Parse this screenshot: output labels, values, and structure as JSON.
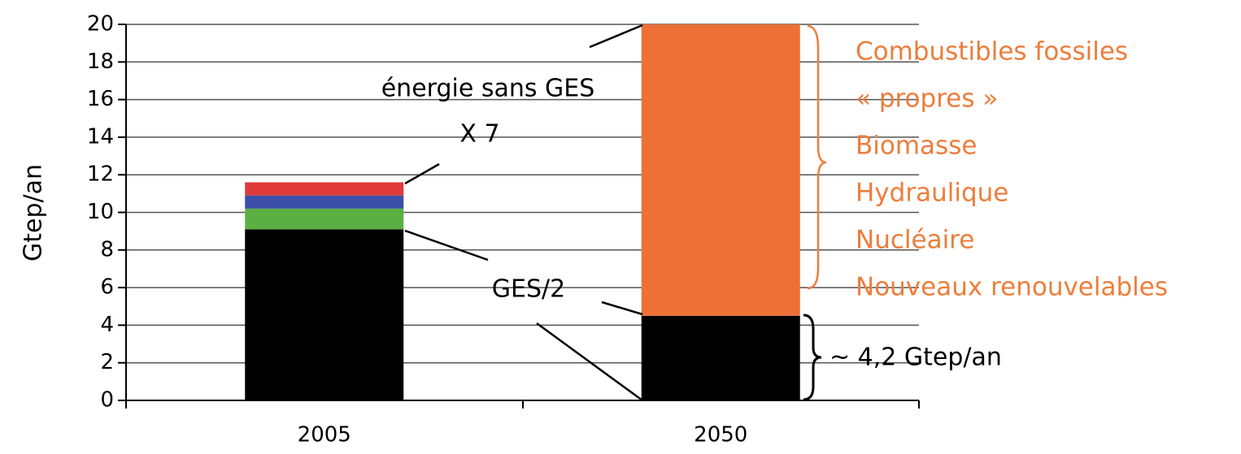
{
  "chart_data": {
    "type": "stacked_bar",
    "y_label": "Gtep/an",
    "categories": [
      "2005",
      "2050"
    ],
    "series": [
      {
        "color": "#000000",
        "values": [
          9.1,
          4.5
        ]
      },
      {
        "color": "#5bb043",
        "values": [
          1.1,
          null
        ]
      },
      {
        "color": "#3b4fa8",
        "values": [
          0.7,
          null
        ]
      },
      {
        "color": "#e03a3a",
        "values": [
          0.7,
          null
        ]
      },
      {
        "color": "#ed7036",
        "values": [
          null,
          15.5
        ]
      }
    ],
    "ylim": [
      0,
      20
    ],
    "yticks": [
      0,
      2,
      4,
      6,
      8,
      10,
      12,
      14,
      16,
      18,
      20
    ],
    "grid": true,
    "annotations": [
      "énergie sans GES",
      "X 7",
      "GES/2",
      "~ 4,2 Gtep/an"
    ],
    "energy_list": [
      "Combustibles fossiles",
      "« propres »",
      "Biomasse",
      "Hydraulique",
      "Nucléaire",
      "Nouveaux renouvelables"
    ]
  }
}
